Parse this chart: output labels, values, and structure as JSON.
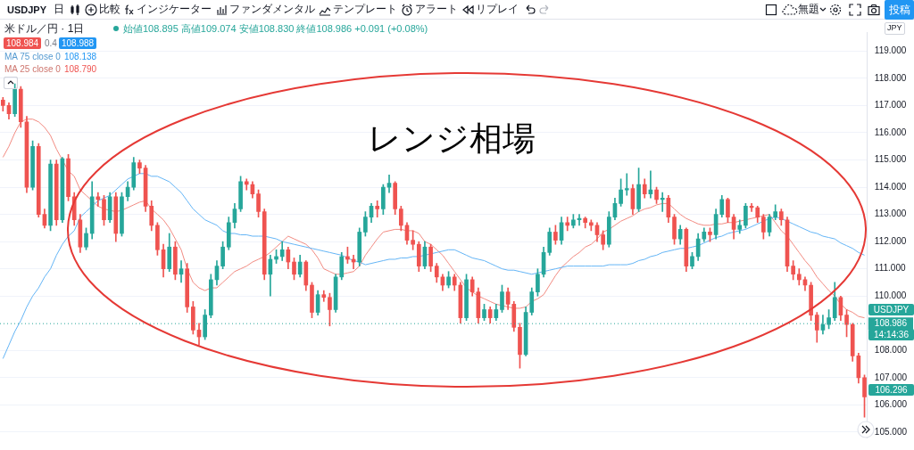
{
  "chart_data": {
    "type": "candlestick",
    "title": "米ドル／円 · 1日",
    "subtitle": "始値108.895 高値109.074 安値108.830 終値108.986 +0.091 (+0.08%)",
    "categories": [
      null,
      null,
      null,
      null,
      null,
      null,
      null,
      null,
      null,
      null,
      null,
      null,
      null,
      null,
      null,
      null,
      null,
      null,
      null,
      null,
      null,
      null,
      null,
      null,
      null,
      null,
      null,
      null,
      null,
      null,
      null,
      null,
      null,
      null,
      null,
      null,
      null,
      null,
      null,
      null,
      null,
      null,
      null,
      null,
      null,
      null,
      null,
      null,
      null,
      null,
      null,
      null,
      null,
      null,
      null,
      null,
      null,
      null,
      null,
      null,
      null,
      null,
      null,
      null,
      null,
      null,
      null,
      null,
      null,
      null,
      null,
      null,
      null,
      null,
      null,
      null,
      null,
      null,
      null,
      null,
      null,
      null,
      null,
      null,
      null,
      null,
      null,
      null,
      null,
      null,
      null,
      null,
      null,
      null,
      null,
      null,
      null,
      null,
      null,
      null,
      null,
      null,
      null,
      null,
      null,
      null,
      null,
      null,
      null,
      null,
      null,
      null,
      null,
      null,
      null,
      null,
      null,
      null,
      null,
      null,
      null,
      null,
      null,
      null,
      null,
      null,
      null,
      null,
      null,
      null,
      null,
      null,
      null,
      null,
      null,
      null,
      null,
      null,
      null,
      null,
      null,
      null,
      null,
      null,
      null,
      null
    ],
    "series": [
      {
        "ohlc": [
          [
            117.2,
            117.3,
            116.8,
            117.0
          ],
          [
            117.0,
            117.1,
            116.5,
            116.7
          ],
          [
            116.7,
            117.8,
            116.6,
            117.6
          ],
          [
            117.6,
            117.7,
            116.2,
            116.4
          ],
          [
            116.4,
            116.6,
            113.8,
            114.0
          ],
          [
            114.0,
            115.7,
            113.9,
            115.5
          ],
          [
            115.5,
            115.6,
            112.9,
            113.0
          ],
          [
            113.0,
            113.2,
            112.5,
            112.6
          ],
          [
            112.6,
            115.0,
            112.4,
            114.85
          ],
          [
            114.85,
            115.0,
            112.6,
            112.8
          ],
          [
            112.8,
            115.1,
            112.7,
            115.05
          ],
          [
            115.05,
            115.2,
            113.5,
            113.65
          ],
          [
            113.65,
            113.8,
            112.6,
            112.8
          ],
          [
            112.8,
            113.0,
            111.6,
            111.8
          ],
          [
            111.8,
            112.5,
            111.7,
            112.3
          ],
          [
            112.3,
            114.2,
            112.1,
            113.65
          ],
          [
            113.65,
            113.8,
            113.3,
            113.55
          ],
          [
            113.55,
            113.7,
            112.6,
            112.8
          ],
          [
            112.8,
            113.8,
            112.7,
            113.65
          ],
          [
            113.65,
            113.8,
            112.0,
            112.3
          ],
          [
            112.3,
            113.8,
            112.2,
            113.65
          ],
          [
            113.65,
            114.2,
            113.5,
            114.0
          ],
          [
            114.0,
            115.1,
            113.9,
            114.9
          ],
          [
            114.9,
            115.0,
            114.5,
            114.7
          ],
          [
            114.7,
            114.8,
            113.1,
            113.3
          ],
          [
            113.3,
            113.5,
            112.4,
            112.6
          ],
          [
            112.6,
            112.7,
            111.5,
            111.7
          ],
          [
            111.7,
            111.9,
            110.7,
            111.0
          ],
          [
            111.0,
            112.3,
            110.9,
            111.8
          ],
          [
            111.8,
            112.0,
            110.6,
            110.8
          ],
          [
            110.8,
            111.3,
            110.5,
            111.0
          ],
          [
            111.0,
            111.2,
            109.4,
            109.6
          ],
          [
            109.6,
            109.8,
            108.6,
            108.75
          ],
          [
            108.75,
            109.0,
            108.2,
            108.5
          ],
          [
            108.5,
            109.5,
            108.4,
            109.3
          ],
          [
            109.3,
            110.8,
            109.2,
            110.6
          ],
          [
            110.6,
            111.3,
            110.4,
            111.1
          ],
          [
            111.1,
            112.0,
            111.0,
            111.8
          ],
          [
            111.8,
            112.9,
            111.7,
            112.7
          ],
          [
            112.7,
            113.4,
            112.5,
            113.2
          ],
          [
            113.2,
            114.4,
            113.1,
            114.2
          ],
          [
            114.2,
            114.3,
            113.9,
            114.1
          ],
          [
            114.1,
            114.2,
            113.6,
            113.75
          ],
          [
            113.75,
            113.9,
            112.9,
            113.1
          ],
          [
            113.1,
            113.2,
            110.6,
            110.8
          ],
          [
            110.8,
            111.5,
            110.0,
            111.35
          ],
          [
            111.35,
            111.7,
            111.2,
            111.45
          ],
          [
            111.45,
            112.0,
            111.3,
            111.7
          ],
          [
            111.7,
            111.8,
            111.0,
            111.25
          ],
          [
            111.25,
            111.4,
            110.6,
            110.8
          ],
          [
            110.8,
            111.5,
            110.7,
            111.25
          ],
          [
            111.25,
            111.3,
            110.2,
            110.4
          ],
          [
            110.4,
            110.5,
            109.2,
            109.4
          ],
          [
            109.4,
            110.2,
            109.3,
            110.05
          ],
          [
            110.05,
            110.2,
            109.8,
            109.95
          ],
          [
            109.95,
            110.1,
            108.9,
            109.5
          ],
          [
            109.5,
            110.8,
            109.4,
            110.7
          ],
          [
            110.7,
            111.6,
            110.6,
            111.45
          ],
          [
            111.45,
            111.8,
            111.2,
            111.35
          ],
          [
            111.35,
            111.5,
            111.0,
            111.25
          ],
          [
            111.25,
            112.5,
            111.1,
            112.35
          ],
          [
            112.35,
            113.1,
            112.2,
            112.9
          ],
          [
            112.9,
            113.4,
            112.7,
            113.3
          ],
          [
            113.3,
            113.5,
            112.9,
            113.2
          ],
          [
            113.2,
            114.1,
            113.0,
            114.0
          ],
          [
            114.0,
            114.45,
            113.8,
            114.15
          ],
          [
            114.15,
            114.2,
            113.0,
            113.2
          ],
          [
            113.2,
            113.3,
            112.4,
            112.6
          ],
          [
            112.6,
            112.7,
            111.9,
            112.05
          ],
          [
            112.05,
            112.4,
            111.7,
            111.9
          ],
          [
            111.9,
            112.0,
            110.9,
            111.1
          ],
          [
            111.1,
            112.0,
            111.0,
            111.8
          ],
          [
            111.8,
            111.9,
            110.9,
            111.1
          ],
          [
            111.1,
            111.2,
            110.5,
            110.7
          ],
          [
            110.7,
            110.8,
            110.2,
            110.4
          ],
          [
            110.4,
            110.9,
            110.3,
            110.7
          ],
          [
            110.7,
            110.8,
            110.2,
            110.4
          ],
          [
            110.4,
            110.5,
            109.0,
            109.2
          ],
          [
            109.2,
            110.8,
            109.1,
            110.6
          ],
          [
            110.6,
            110.7,
            110.0,
            110.15
          ],
          [
            110.15,
            110.3,
            109.0,
            109.2
          ],
          [
            109.2,
            109.7,
            109.1,
            109.5
          ],
          [
            109.5,
            109.6,
            109.0,
            109.2
          ],
          [
            109.2,
            109.7,
            109.1,
            109.5
          ],
          [
            109.5,
            110.4,
            109.4,
            110.15
          ],
          [
            110.15,
            110.3,
            109.5,
            109.7
          ],
          [
            109.7,
            109.8,
            108.7,
            108.85
          ],
          [
            108.85,
            109.0,
            107.35,
            107.85
          ],
          [
            107.85,
            109.6,
            107.8,
            109.4
          ],
          [
            109.4,
            110.3,
            109.3,
            110.15
          ],
          [
            110.15,
            111.0,
            110.0,
            110.8
          ],
          [
            110.8,
            111.8,
            110.7,
            111.6
          ],
          [
            111.6,
            112.5,
            111.5,
            112.35
          ],
          [
            112.35,
            112.6,
            111.9,
            112.05
          ],
          [
            112.05,
            112.9,
            111.9,
            112.7
          ],
          [
            112.7,
            112.9,
            112.4,
            112.6
          ],
          [
            112.6,
            113.0,
            112.5,
            112.8
          ],
          [
            112.8,
            113.0,
            112.6,
            112.85
          ],
          [
            112.85,
            112.9,
            112.5,
            112.7
          ],
          [
            112.7,
            112.8,
            112.4,
            112.6
          ],
          [
            112.6,
            112.7,
            112.0,
            112.25
          ],
          [
            112.25,
            112.4,
            111.7,
            111.9
          ],
          [
            111.9,
            113.1,
            111.8,
            112.9
          ],
          [
            112.9,
            113.6,
            112.8,
            113.4
          ],
          [
            113.4,
            114.3,
            113.3,
            113.9
          ],
          [
            113.9,
            114.5,
            113.7,
            113.95
          ],
          [
            113.95,
            114.1,
            113.0,
            113.2
          ],
          [
            113.2,
            114.7,
            113.1,
            114.1
          ],
          [
            114.1,
            114.3,
            113.6,
            113.75
          ],
          [
            113.75,
            114.6,
            113.6,
            113.9
          ],
          [
            113.9,
            114.0,
            113.4,
            113.55
          ],
          [
            113.55,
            113.8,
            113.1,
            113.6
          ],
          [
            113.6,
            113.7,
            112.7,
            112.9
          ],
          [
            112.9,
            113.0,
            111.9,
            112.1
          ],
          [
            112.1,
            112.6,
            111.9,
            112.45
          ],
          [
            112.45,
            112.5,
            110.9,
            111.1
          ],
          [
            111.1,
            111.6,
            111.0,
            111.45
          ],
          [
            111.45,
            112.3,
            111.3,
            112.1
          ],
          [
            112.1,
            112.5,
            112.0,
            112.35
          ],
          [
            112.35,
            112.5,
            112.0,
            112.25
          ],
          [
            112.25,
            113.2,
            112.1,
            113.0
          ],
          [
            113.0,
            113.7,
            112.9,
            113.55
          ],
          [
            113.55,
            113.6,
            112.7,
            112.9
          ],
          [
            112.9,
            113.0,
            112.1,
            112.45
          ],
          [
            112.45,
            112.8,
            112.3,
            112.6
          ],
          [
            112.6,
            113.4,
            112.5,
            113.3
          ],
          [
            113.3,
            113.4,
            113.1,
            113.25
          ],
          [
            113.25,
            113.3,
            112.7,
            112.9
          ],
          [
            112.9,
            113.0,
            112.1,
            112.35
          ],
          [
            112.35,
            113.0,
            112.2,
            112.9
          ],
          [
            112.9,
            113.35,
            112.8,
            113.1
          ],
          [
            113.1,
            113.2,
            112.6,
            112.8
          ],
          [
            112.8,
            112.9,
            110.9,
            111.1
          ],
          [
            111.1,
            111.3,
            110.6,
            110.8
          ],
          [
            110.8,
            111.0,
            110.4,
            110.6
          ],
          [
            110.6,
            110.7,
            110.2,
            110.4
          ],
          [
            110.4,
            110.5,
            109.1,
            109.3
          ],
          [
            109.3,
            109.4,
            108.3,
            108.75
          ],
          [
            108.75,
            109.3,
            108.6,
            108.95
          ],
          [
            108.95,
            109.5,
            108.8,
            109.2
          ],
          [
            109.2,
            110.5,
            109.1,
            109.95
          ],
          [
            109.95,
            110.0,
            109.1,
            109.3
          ],
          [
            109.3,
            109.5,
            108.5,
            108.95
          ],
          [
            108.95,
            109.0,
            107.6,
            107.8
          ],
          [
            107.8,
            107.9,
            106.8,
            107.0
          ],
          [
            107.0,
            107.1,
            105.55,
            106.296
          ]
        ],
        "colors": [
          "#ef5350",
          "#ef5350",
          "#26a69a",
          "#ef5350",
          "#ef5350",
          "#26a69a",
          "#ef5350",
          "#ef5350",
          "#26a69a",
          "#ef5350",
          "#26a69a",
          "#ef5350",
          "#ef5350",
          "#ef5350",
          "#26a69a",
          "#26a69a",
          "#ef5350",
          "#ef5350",
          "#26a69a",
          "#ef5350",
          "#26a69a",
          "#26a69a",
          "#26a69a",
          "#ef5350",
          "#ef5350",
          "#ef5350",
          "#ef5350",
          "#ef5350",
          "#26a69a",
          "#ef5350",
          "#26a69a",
          "#ef5350",
          "#ef5350",
          "#ef5350",
          "#26a69a",
          "#26a69a",
          "#26a69a",
          "#26a69a",
          "#26a69a",
          "#26a69a",
          "#26a69a",
          "#ef5350",
          "#ef5350",
          "#ef5350",
          "#ef5350",
          "#26a69a",
          "#26a69a",
          "#26a69a",
          "#ef5350",
          "#ef5350",
          "#26a69a",
          "#ef5350",
          "#ef5350",
          "#26a69a",
          "#ef5350",
          "#ef5350",
          "#26a69a",
          "#26a69a",
          "#ef5350",
          "#ef5350",
          "#26a69a",
          "#26a69a",
          "#26a69a",
          "#ef5350",
          "#26a69a",
          "#26a69a",
          "#ef5350",
          "#ef5350",
          "#ef5350",
          "#ef5350",
          "#ef5350",
          "#26a69a",
          "#ef5350",
          "#ef5350",
          "#ef5350",
          "#26a69a",
          "#ef5350",
          "#ef5350",
          "#26a69a",
          "#ef5350",
          "#ef5350",
          "#26a69a",
          "#ef5350",
          "#26a69a",
          "#26a69a",
          "#ef5350",
          "#ef5350",
          "#ef5350",
          "#26a69a",
          "#26a69a",
          "#26a69a",
          "#26a69a",
          "#26a69a",
          "#ef5350",
          "#26a69a",
          "#ef5350",
          "#26a69a",
          "#26a69a",
          "#ef5350",
          "#ef5350",
          "#ef5350",
          "#ef5350",
          "#26a69a",
          "#26a69a",
          "#26a69a",
          "#26a69a",
          "#ef5350",
          "#26a69a",
          "#ef5350",
          "#26a69a",
          "#ef5350",
          "#26a69a",
          "#ef5350",
          "#ef5350",
          "#26a69a",
          "#ef5350",
          "#26a69a",
          "#26a69a",
          "#26a69a",
          "#ef5350",
          "#26a69a",
          "#26a69a",
          "#ef5350",
          "#ef5350",
          "#26a69a",
          "#26a69a",
          "#ef5350",
          "#ef5350",
          "#ef5350",
          "#26a69a",
          "#26a69a",
          "#ef5350",
          "#ef5350",
          "#ef5350",
          "#ef5350",
          "#ef5350",
          "#ef5350",
          "#ef5350",
          "#26a69a",
          "#26a69a",
          "#26a69a",
          "#ef5350",
          "#ef5350",
          "#ef5350",
          "#ef5350",
          "#ef5350"
        ]
      },
      {
        "type": "line",
        "name": "MA 75 close 0",
        "color": "#64b5f6",
        "values": [
          107.7,
          108.2,
          108.7,
          109.1,
          109.6,
          110.0,
          110.3,
          110.7,
          111.0,
          111.5,
          111.9,
          112.2,
          112.4,
          112.9,
          113.1,
          113.3,
          113.5,
          113.6,
          113.7,
          113.9,
          114.1,
          114.3,
          114.4,
          114.5,
          114.5,
          114.4,
          114.4,
          114.3,
          114.2,
          114.0,
          113.8,
          113.5,
          113.2,
          113.0,
          112.8,
          112.7,
          112.6,
          112.4,
          112.3,
          112.3,
          112.25,
          112.25,
          112.2,
          112.2,
          112.2,
          112.15,
          112.1,
          112.0,
          111.95,
          111.9,
          111.85,
          111.8,
          111.75,
          111.7,
          111.65,
          111.6,
          111.55,
          111.5,
          111.4,
          111.3,
          111.25,
          111.15,
          111.2,
          111.25,
          111.3,
          111.35,
          111.35,
          111.4,
          111.4,
          111.45,
          111.45,
          111.5,
          111.55,
          111.6,
          111.65,
          111.7,
          111.7,
          111.6,
          111.5,
          111.4,
          111.35,
          111.3,
          111.2,
          111.1,
          111.0,
          110.95,
          110.95,
          110.9,
          110.85,
          110.8,
          110.85,
          110.9,
          110.95,
          111.0,
          111.05,
          111.1,
          111.1,
          111.1,
          111.1,
          111.1,
          111.1,
          111.1,
          111.15,
          111.15,
          111.15,
          111.15,
          111.2,
          111.3,
          111.35,
          111.45,
          111.5,
          111.6,
          111.65,
          111.7,
          111.75,
          111.75,
          111.8,
          111.85,
          111.95,
          112.05,
          112.15,
          112.2,
          112.3,
          112.35,
          112.4,
          112.45,
          112.55,
          112.65,
          112.75,
          112.85,
          112.9,
          112.85,
          112.75,
          112.65,
          112.55,
          112.45,
          112.35,
          112.3,
          112.2,
          112.15,
          112.1,
          111.95,
          111.85,
          111.75,
          111.6,
          111.5
        ]
      },
      {
        "type": "line",
        "name": "MA 25 close 0",
        "color": "#f28b82",
        "values": [
          115.1,
          115.5,
          116.0,
          116.4,
          116.5,
          116.5,
          116.4,
          116.2,
          115.9,
          115.4,
          115.0,
          114.6,
          114.4,
          113.9,
          113.7,
          113.5,
          113.3,
          113.2,
          113.15,
          113.1,
          113.15,
          113.25,
          113.35,
          113.45,
          113.5,
          113.2,
          113.0,
          112.8,
          112.5,
          112.1,
          111.7,
          111.0,
          110.5,
          110.3,
          110.2,
          110.3,
          110.3,
          110.5,
          110.7,
          110.9,
          111.0,
          111.1,
          111.25,
          111.35,
          111.45,
          111.6,
          111.8,
          112.0,
          112.2,
          112.1,
          112.0,
          111.9,
          111.7,
          111.4,
          111.0,
          110.9,
          110.8,
          110.8,
          110.85,
          110.9,
          111.1,
          111.5,
          111.8,
          112.1,
          112.35,
          112.4,
          112.45,
          112.45,
          112.4,
          112.4,
          112.3,
          112.0,
          111.9,
          111.7,
          111.5,
          111.2,
          110.9,
          110.6,
          110.3,
          110.15,
          110.0,
          109.9,
          109.8,
          109.7,
          109.65,
          109.6,
          109.55,
          109.55,
          109.6,
          109.8,
          109.9,
          110.05,
          110.4,
          110.75,
          111.05,
          111.25,
          111.45,
          111.6,
          111.8,
          111.9,
          112.1,
          112.35,
          112.45,
          112.6,
          112.75,
          112.85,
          112.95,
          113.1,
          113.2,
          113.25,
          113.35,
          113.4,
          113.4,
          113.2,
          113.0,
          112.85,
          112.75,
          112.65,
          112.6,
          112.6,
          112.65,
          112.65,
          112.7,
          112.7,
          112.75,
          112.8,
          112.85,
          112.9,
          112.95,
          113.0,
          112.7,
          112.4,
          112.2,
          111.9,
          111.6,
          111.3,
          111.05,
          110.7,
          110.45,
          110.2,
          110.0,
          109.7,
          109.5,
          109.4,
          109.25,
          109.2
        ]
      }
    ],
    "ylim": [
      104.8,
      119.7
    ],
    "yticks": [
      {
        "value": 105,
        "label": "105.000"
      },
      {
        "value": 106,
        "label": "106.000"
      },
      {
        "value": 107,
        "label": "107.000"
      },
      {
        "value": 108,
        "label": "108.000"
      },
      {
        "value": 110,
        "label": "110.000"
      },
      {
        "value": 111,
        "label": "111.000"
      },
      {
        "value": 112,
        "label": "112.000"
      },
      {
        "value": 113,
        "label": "113.000"
      },
      {
        "value": 114,
        "label": "114.000"
      },
      {
        "value": 115,
        "label": "115.000"
      },
      {
        "value": 116,
        "label": "116.000"
      },
      {
        "value": 117,
        "label": "117.000"
      },
      {
        "value": 118,
        "label": "118.000"
      },
      {
        "value": 119,
        "label": "119.000"
      }
    ],
    "tick_labels": "y",
    "grid": "y",
    "legend": "top left",
    "ref_lines": [
      {
        "axis": "y",
        "value": 108.986,
        "label": "108.986",
        "color": "#26a69a",
        "line_style": "dotted"
      }
    ],
    "annotations": [
      "USDJPY",
      "日",
      "比較",
      "インジケーター",
      "ファンダメンタル",
      "テンプレート",
      "アラート",
      "リプレイ",
      "無題",
      "投稿",
      "108.984",
      "0.4",
      "108.988",
      "108.138",
      "108.790",
      "レンジ相場",
      "JPY",
      "USDJPY",
      "14:14:36",
      "106.296"
    ]
  }
}
